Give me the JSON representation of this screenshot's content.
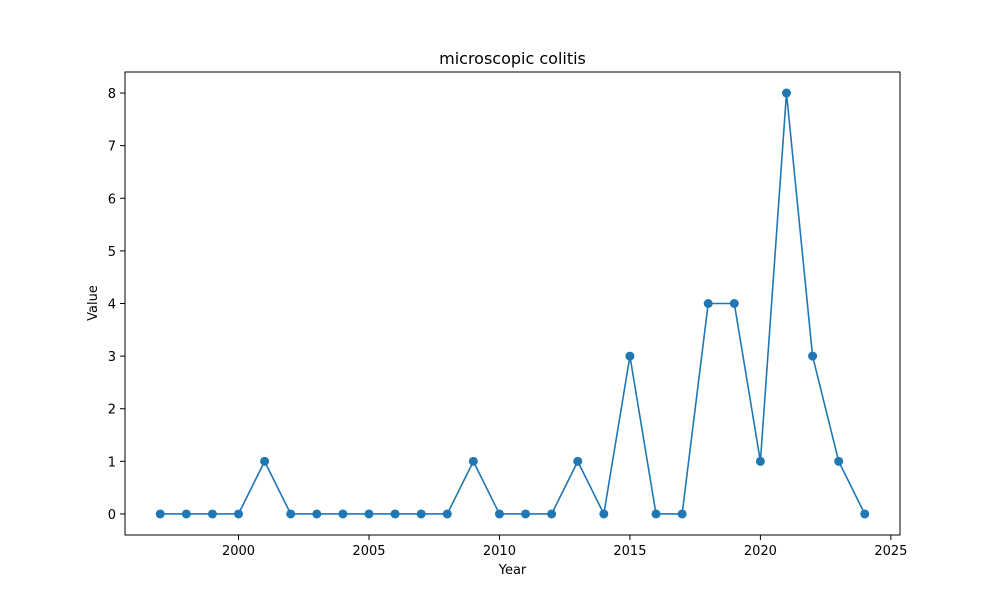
{
  "chart_data": {
    "type": "line",
    "title": "microscopic colitis",
    "xlabel": "Year",
    "ylabel": "Value",
    "x": [
      1997,
      1998,
      1999,
      2000,
      2001,
      2002,
      2003,
      2004,
      2005,
      2006,
      2007,
      2008,
      2009,
      2010,
      2011,
      2012,
      2013,
      2014,
      2015,
      2016,
      2017,
      2018,
      2019,
      2020,
      2021,
      2022,
      2023,
      2024
    ],
    "series": [
      {
        "values": [
          0,
          0,
          0,
          0,
          1,
          0,
          0,
          0,
          0,
          0,
          0,
          0,
          1,
          0,
          0,
          0,
          1,
          0,
          3,
          0,
          0,
          4,
          4,
          1,
          8,
          3,
          1,
          0
        ],
        "color": "#1f77b4",
        "marker": "circle"
      }
    ],
    "xlim": [
      1995.65,
      2025.35
    ],
    "ylim": [
      -0.4,
      8.4
    ],
    "xticks": [
      2000,
      2005,
      2010,
      2015,
      2020,
      2025
    ],
    "yticks": [
      0,
      1,
      2,
      3,
      4,
      5,
      6,
      7,
      8
    ],
    "grid": false,
    "legend": "none"
  }
}
